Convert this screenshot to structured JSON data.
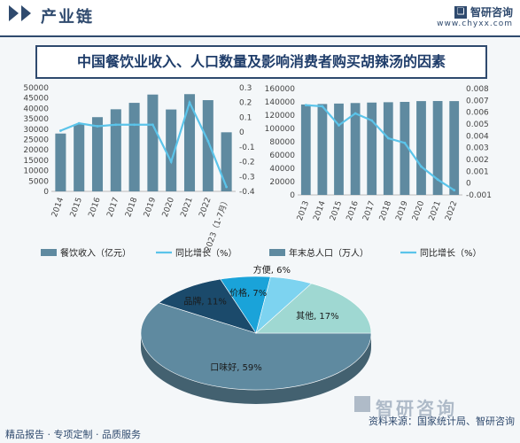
{
  "header": {
    "section_title": "产业链",
    "brand_name": "智研咨询",
    "brand_url": "www.chyxx.com"
  },
  "title": "中国餐饮业收入、人口数量及影响消费者购买胡辣汤的因素",
  "colors": {
    "bar": "#5f8aa0",
    "line": "#5bc4ea",
    "accent": "#2f4a6e"
  },
  "chart_data": [
    {
      "type": "bar",
      "categories": [
        "2014",
        "2015",
        "2016",
        "2017",
        "2018",
        "2019",
        "2020",
        "2021",
        "2022",
        "2023（1-7月）"
      ],
      "series": [
        {
          "name": "餐饮收入（亿元）",
          "type": "bar",
          "axis": "left",
          "values": [
            27900,
            32300,
            35800,
            39600,
            42700,
            46700,
            39500,
            46900,
            44000,
            28500
          ]
        },
        {
          "name": "同比增长（%）",
          "type": "line",
          "axis": "right",
          "values": [
            0.01,
            0.06,
            0.04,
            0.05,
            0.05,
            0.05,
            -0.2,
            0.2,
            -0.06,
            -0.37
          ]
        }
      ],
      "y_left": {
        "min": 0,
        "max": 50000,
        "ticks": [
          "0",
          "5000",
          "10000",
          "15000",
          "20000",
          "25000",
          "30000",
          "35000",
          "40000",
          "45000",
          "50000"
        ]
      },
      "y_right": {
        "min": -0.4,
        "max": 0.3,
        "ticks": [
          "-0.4",
          "-0.3",
          "-0.2",
          "-0.1",
          "0",
          "0.1",
          "0.2",
          "0.3"
        ]
      },
      "legend": [
        "餐饮收入（亿元）",
        "同比增长（%）"
      ]
    },
    {
      "type": "bar",
      "categories": [
        "2013",
        "2014",
        "2015",
        "2016",
        "2017",
        "2018",
        "2019",
        "2020",
        "2021",
        "2022"
      ],
      "series": [
        {
          "name": "年末总人口（万人）",
          "type": "bar",
          "axis": "left",
          "values": [
            136100,
            136800,
            137500,
            138300,
            139000,
            139500,
            140000,
            141200,
            141300,
            141200
          ]
        },
        {
          "name": "同比增长（%）",
          "type": "line",
          "axis": "right",
          "values": [
            0.0066,
            0.0065,
            0.0049,
            0.0059,
            0.0053,
            0.0038,
            0.0034,
            0.0014,
            0.0003,
            -0.0006
          ]
        }
      ],
      "y_left": {
        "min": 0,
        "max": 160000,
        "ticks": [
          "0",
          "20000",
          "40000",
          "60000",
          "80000",
          "100000",
          "120000",
          "140000",
          "160000"
        ]
      },
      "y_right": {
        "min": -0.001,
        "max": 0.008,
        "ticks": [
          "-0.001",
          "0",
          "0.001",
          "0.002",
          "0.003",
          "0.004",
          "0.005",
          "0.006",
          "0.007",
          "0.008"
        ]
      },
      "legend": [
        "年末总人口（万人）",
        "同比增长（%）"
      ]
    },
    {
      "type": "pie",
      "labels": [
        "口味好",
        "品牌",
        "价格",
        "方便",
        "其他"
      ],
      "values": [
        59,
        11,
        7,
        6,
        17
      ],
      "display": [
        "口味好, 59%",
        "品牌, 11%",
        "价格, 7%",
        "方便, 6%",
        "其他, 17%"
      ],
      "colors": [
        "#5f8aa0",
        "#1b4a6b",
        "#1aa3d9",
        "#7dd3f0",
        "#9fd8d2"
      ]
    }
  ],
  "footer": {
    "left": "精品报告 · 专项定制 · 品质服务",
    "source": "资料来源：国家统计局、智研咨询",
    "logo": "智研咨询"
  }
}
